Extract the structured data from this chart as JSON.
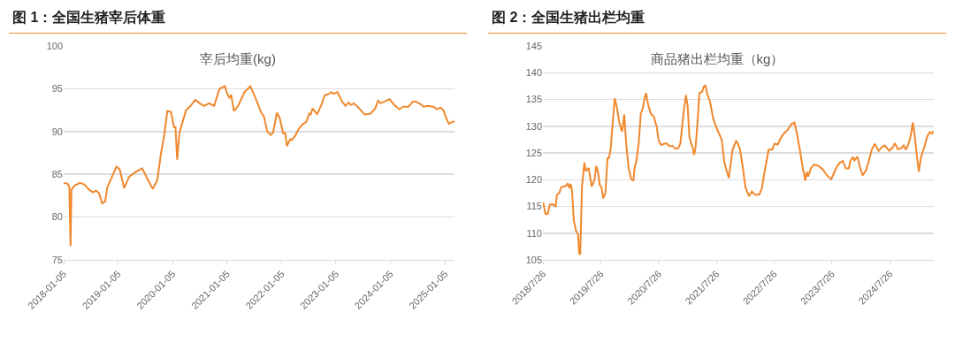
{
  "chart_data": [
    {
      "type": "line",
      "title": "图 1：全国生猪宰后体重",
      "subtitle": "宰后均重(kg)",
      "color": "#f0882d",
      "grid": "y",
      "xlim": [
        "2018-01-05",
        "2025-03-10"
      ],
      "xticks": [
        "2018-01-05",
        "2019-01-05",
        "2020-01-05",
        "2021-01-05",
        "2022-01-05",
        "2023-01-05",
        "2024-01-05",
        "2025-01-05"
      ],
      "ylim": [
        75,
        100
      ],
      "yticks": [
        75,
        80,
        85,
        90,
        95,
        100
      ],
      "x": [
        "2018-01-05",
        "2018-02-01",
        "2018-02-12",
        "2018-02-20",
        "2018-02-26",
        "2018-03-20",
        "2018-04-25",
        "2018-05-25",
        "2018-06-25",
        "2018-07-20",
        "2018-08-10",
        "2018-08-30",
        "2018-09-20",
        "2018-10-10",
        "2018-10-25",
        "2018-11-20",
        "2018-12-25",
        "2019-01-15",
        "2019-02-15",
        "2019-03-20",
        "2019-04-25",
        "2019-06-15",
        "2019-07-20",
        "2019-08-25",
        "2019-09-25",
        "2019-10-20",
        "2019-11-10",
        "2019-12-01",
        "2019-12-25",
        "2020-01-15",
        "2020-01-25",
        "2020-02-05",
        "2020-02-20",
        "2020-03-10",
        "2020-04-05",
        "2020-05-05",
        "2020-06-05",
        "2020-07-05",
        "2020-08-05",
        "2020-09-05",
        "2020-10-10",
        "2020-11-15",
        "2020-12-20",
        "2021-01-05",
        "2021-01-20",
        "2021-02-01",
        "2021-02-20",
        "2021-03-20",
        "2021-05-01",
        "2021-06-10",
        "2021-07-15",
        "2021-08-20",
        "2021-09-10",
        "2021-10-01",
        "2021-10-25",
        "2021-11-10",
        "2021-12-05",
        "2021-12-25",
        "2022-01-15",
        "2022-01-30",
        "2022-02-10",
        "2022-03-05",
        "2022-03-15",
        "2022-04-10",
        "2022-04-30",
        "2022-05-30",
        "2022-06-20",
        "2022-07-10",
        "2022-07-20",
        "2022-08-01",
        "2022-08-15",
        "2022-09-01",
        "2022-10-01",
        "2022-10-20",
        "2022-11-20",
        "2022-12-05",
        "2022-12-20",
        "2023-01-15",
        "2023-02-15",
        "2023-03-10",
        "2023-04-01",
        "2023-04-15",
        "2023-05-05",
        "2023-06-05",
        "2023-07-15",
        "2023-08-25",
        "2023-09-25",
        "2023-10-15",
        "2023-10-30",
        "2023-12-10",
        "2023-12-30",
        "2024-02-01",
        "2024-03-05",
        "2024-04-01",
        "2024-05-05",
        "2024-06-05",
        "2024-06-25",
        "2024-07-25",
        "2024-08-15",
        "2024-09-12",
        "2024-10-20",
        "2024-11-10",
        "2024-12-05",
        "2024-12-25",
        "2025-01-15",
        "2025-02-01",
        "2025-02-20",
        "2025-03-10"
      ],
      "values": [
        84,
        83.9,
        83.5,
        76.6,
        83.2,
        83.7,
        84,
        83.8,
        83.2,
        82.9,
        83.1,
        82.8,
        81.6,
        81.8,
        83.5,
        84.5,
        85.9,
        85.6,
        83.4,
        84.7,
        85.2,
        85.7,
        84.5,
        83.3,
        84.3,
        87.5,
        89.5,
        92.4,
        92.3,
        90.5,
        90.5,
        86.7,
        89.8,
        91,
        92.5,
        93,
        93.7,
        93.3,
        93,
        93.3,
        93,
        95,
        95.3,
        94.5,
        93.9,
        94.3,
        92.4,
        93,
        94.6,
        95.3,
        93.9,
        92.3,
        91.7,
        90,
        89.6,
        89.9,
        92.2,
        91.5,
        89.8,
        89.8,
        88.3,
        89.1,
        89,
        89.6,
        90.3,
        90.9,
        91.1,
        92.1,
        92,
        92.7,
        92.4,
        92,
        93.2,
        94.2,
        94.4,
        94.6,
        94.4,
        94.6,
        93.5,
        93,
        93.4,
        93.1,
        93.3,
        92.8,
        92,
        92.1,
        92.7,
        93.6,
        93.3,
        93.6,
        93.8,
        93.1,
        92.6,
        92.9,
        92.9,
        93.5,
        93.5,
        93.2,
        92.9,
        93,
        92.9,
        92.6,
        92.8,
        92.5,
        91.5,
        90.9,
        91.1,
        91.2
      ]
    },
    {
      "type": "line",
      "title": "图 2：全国生猪出栏均重",
      "subtitle": "商品猪出栏均重（kg）",
      "color": "#f0882d",
      "grid": "y",
      "xlim": [
        "2018-07-25",
        "2025-04-30"
      ],
      "xticks": [
        {
          "value": "2018-07-26",
          "label": "2018/7/26"
        },
        {
          "value": "2019-07-26",
          "label": "2019/7/26"
        },
        {
          "value": "2020-07-26",
          "label": "2020/7/26"
        },
        {
          "value": "2021-07-26",
          "label": "2021/7/26"
        },
        {
          "value": "2022-07-26",
          "label": "2022/7/26"
        },
        {
          "value": "2023-07-26",
          "label": "2023/7/26"
        },
        {
          "value": "2024-07-26",
          "label": "2024/7/26"
        }
      ],
      "ylim": [
        105,
        145
      ],
      "yticks": [
        105,
        110,
        115,
        120,
        125,
        130,
        135,
        140,
        145
      ],
      "x": [
        "2018-07-26",
        "2018-08-10",
        "2018-08-24",
        "2018-09-06",
        "2018-09-24",
        "2018-10-13",
        "2018-10-22",
        "2018-11-05",
        "2018-11-18",
        "2018-12-15",
        "2018-12-30",
        "2019-01-08",
        "2019-01-17",
        "2019-01-25",
        "2019-02-05",
        "2019-02-19",
        "2019-03-04",
        "2019-03-11",
        "2019-03-18",
        "2019-03-29",
        "2019-04-13",
        "2019-04-22",
        "2019-05-10",
        "2019-05-29",
        "2019-06-16",
        "2019-06-27",
        "2019-07-09",
        "2019-07-19",
        "2019-07-30",
        "2019-08-10",
        "2019-08-24",
        "2019-09-06",
        "2019-09-15",
        "2019-09-26",
        "2019-10-09",
        "2019-10-22",
        "2019-11-05",
        "2019-11-18",
        "2019-12-01",
        "2019-12-08",
        "2019-12-21",
        "2020-01-03",
        "2020-01-17",
        "2020-02-03",
        "2020-02-17",
        "2020-02-23",
        "2020-03-07",
        "2020-03-22",
        "2020-04-04",
        "2020-04-15",
        "2020-04-27",
        "2020-05-07",
        "2020-05-20",
        "2020-06-07",
        "2020-06-25",
        "2020-07-14",
        "2020-07-26",
        "2020-08-10",
        "2020-08-28",
        "2020-09-11",
        "2020-10-03",
        "2020-10-22",
        "2020-11-09",
        "2020-11-27",
        "2020-12-10",
        "2020-12-21",
        "2021-01-03",
        "2021-01-14",
        "2021-01-25",
        "2021-02-05",
        "2021-02-17",
        "2021-02-26",
        "2021-03-07",
        "2021-03-16",
        "2021-03-29",
        "2021-04-09",
        "2021-04-26",
        "2021-05-07",
        "2021-05-16",
        "2021-05-29",
        "2021-06-16",
        "2021-07-05",
        "2021-07-22",
        "2021-08-10",
        "2021-08-28",
        "2021-09-15",
        "2021-10-12",
        "2021-11-05",
        "2021-11-27",
        "2021-12-06",
        "2021-12-21",
        "2022-01-08",
        "2022-01-25",
        "2022-02-17",
        "2022-03-07",
        "2022-03-26",
        "2022-04-22",
        "2022-05-07",
        "2022-05-29",
        "2022-06-21",
        "2022-07-14",
        "2022-07-28",
        "2022-08-19",
        "2022-09-02",
        "2022-09-24",
        "2022-10-22",
        "2022-11-13",
        "2022-12-01",
        "2022-12-19",
        "2023-01-03",
        "2023-01-21",
        "2023-02-08",
        "2023-02-17",
        "2023-02-26",
        "2023-03-16",
        "2023-04-04",
        "2023-05-01",
        "2023-05-29",
        "2023-06-25",
        "2023-07-22",
        "2023-08-10",
        "2023-08-28",
        "2023-09-15",
        "2023-10-03",
        "2023-10-22",
        "2023-11-09",
        "2023-11-22",
        "2023-12-06",
        "2023-12-15",
        "2024-01-03",
        "2024-01-21",
        "2024-02-05",
        "2024-02-26",
        "2024-03-16",
        "2024-04-04",
        "2024-04-22",
        "2024-05-16",
        "2024-06-07",
        "2024-06-25",
        "2024-07-22",
        "2024-08-10",
        "2024-08-28",
        "2024-09-15",
        "2024-10-03",
        "2024-10-22",
        "2024-11-05",
        "2024-11-24",
        "2024-12-06",
        "2024-12-19",
        "2024-12-30",
        "2025-01-14",
        "2025-01-26",
        "2025-02-08",
        "2025-02-26",
        "2025-03-20",
        "2025-04-04",
        "2025-04-18",
        "2025-04-30"
      ],
      "values": [
        115.8,
        113.6,
        113.6,
        115.3,
        115.4,
        115,
        117.2,
        117.5,
        118.6,
        118.8,
        119.3,
        118.4,
        119.2,
        118,
        112.4,
        110.4,
        109.8,
        106.3,
        106,
        118.7,
        123.2,
        121.6,
        122.2,
        118.7,
        120,
        122.6,
        121.3,
        119,
        118.6,
        116.5,
        117.5,
        124,
        124,
        125.7,
        130.5,
        135.2,
        133.5,
        131,
        129.5,
        129,
        132.2,
        126.5,
        122.3,
        120.1,
        119.8,
        122,
        123.5,
        127,
        132.4,
        133.2,
        135.1,
        136.2,
        134,
        132.3,
        131.8,
        129.8,
        127.3,
        126.5,
        126.7,
        126.8,
        126.3,
        126.3,
        125.8,
        125.9,
        126.8,
        130,
        133.5,
        135.8,
        133.8,
        128,
        126.7,
        126,
        124.6,
        126,
        131,
        136.2,
        136.4,
        137.4,
        137.7,
        136,
        134.5,
        131.5,
        130,
        128.7,
        127.5,
        123.1,
        120.3,
        125.6,
        127.2,
        126.9,
        125.8,
        122.5,
        118.6,
        116.9,
        117.8,
        117.2,
        117.2,
        118.1,
        121.9,
        125.6,
        125.6,
        126.7,
        126.6,
        127.6,
        128.6,
        129.4,
        130.4,
        130.7,
        128.3,
        125.8,
        122.5,
        119.8,
        121.5,
        120.6,
        122.2,
        122.8,
        122.6,
        121.9,
        120.8,
        120.1,
        121.4,
        122.5,
        123.2,
        123.5,
        122.1,
        122.1,
        123.7,
        124.2,
        123.6,
        124.3,
        122.2,
        120.8,
        121.7,
        123.6,
        125.7,
        126.7,
        125.4,
        126.1,
        126.4,
        125.4,
        125.9,
        126.8,
        125.7,
        125.8,
        126.4,
        125.6,
        126.9,
        128.3,
        130.7,
        128.3,
        124.2,
        121.5,
        124.2,
        125.8,
        128.1,
        128.9,
        128.6,
        129.1
      ]
    }
  ]
}
